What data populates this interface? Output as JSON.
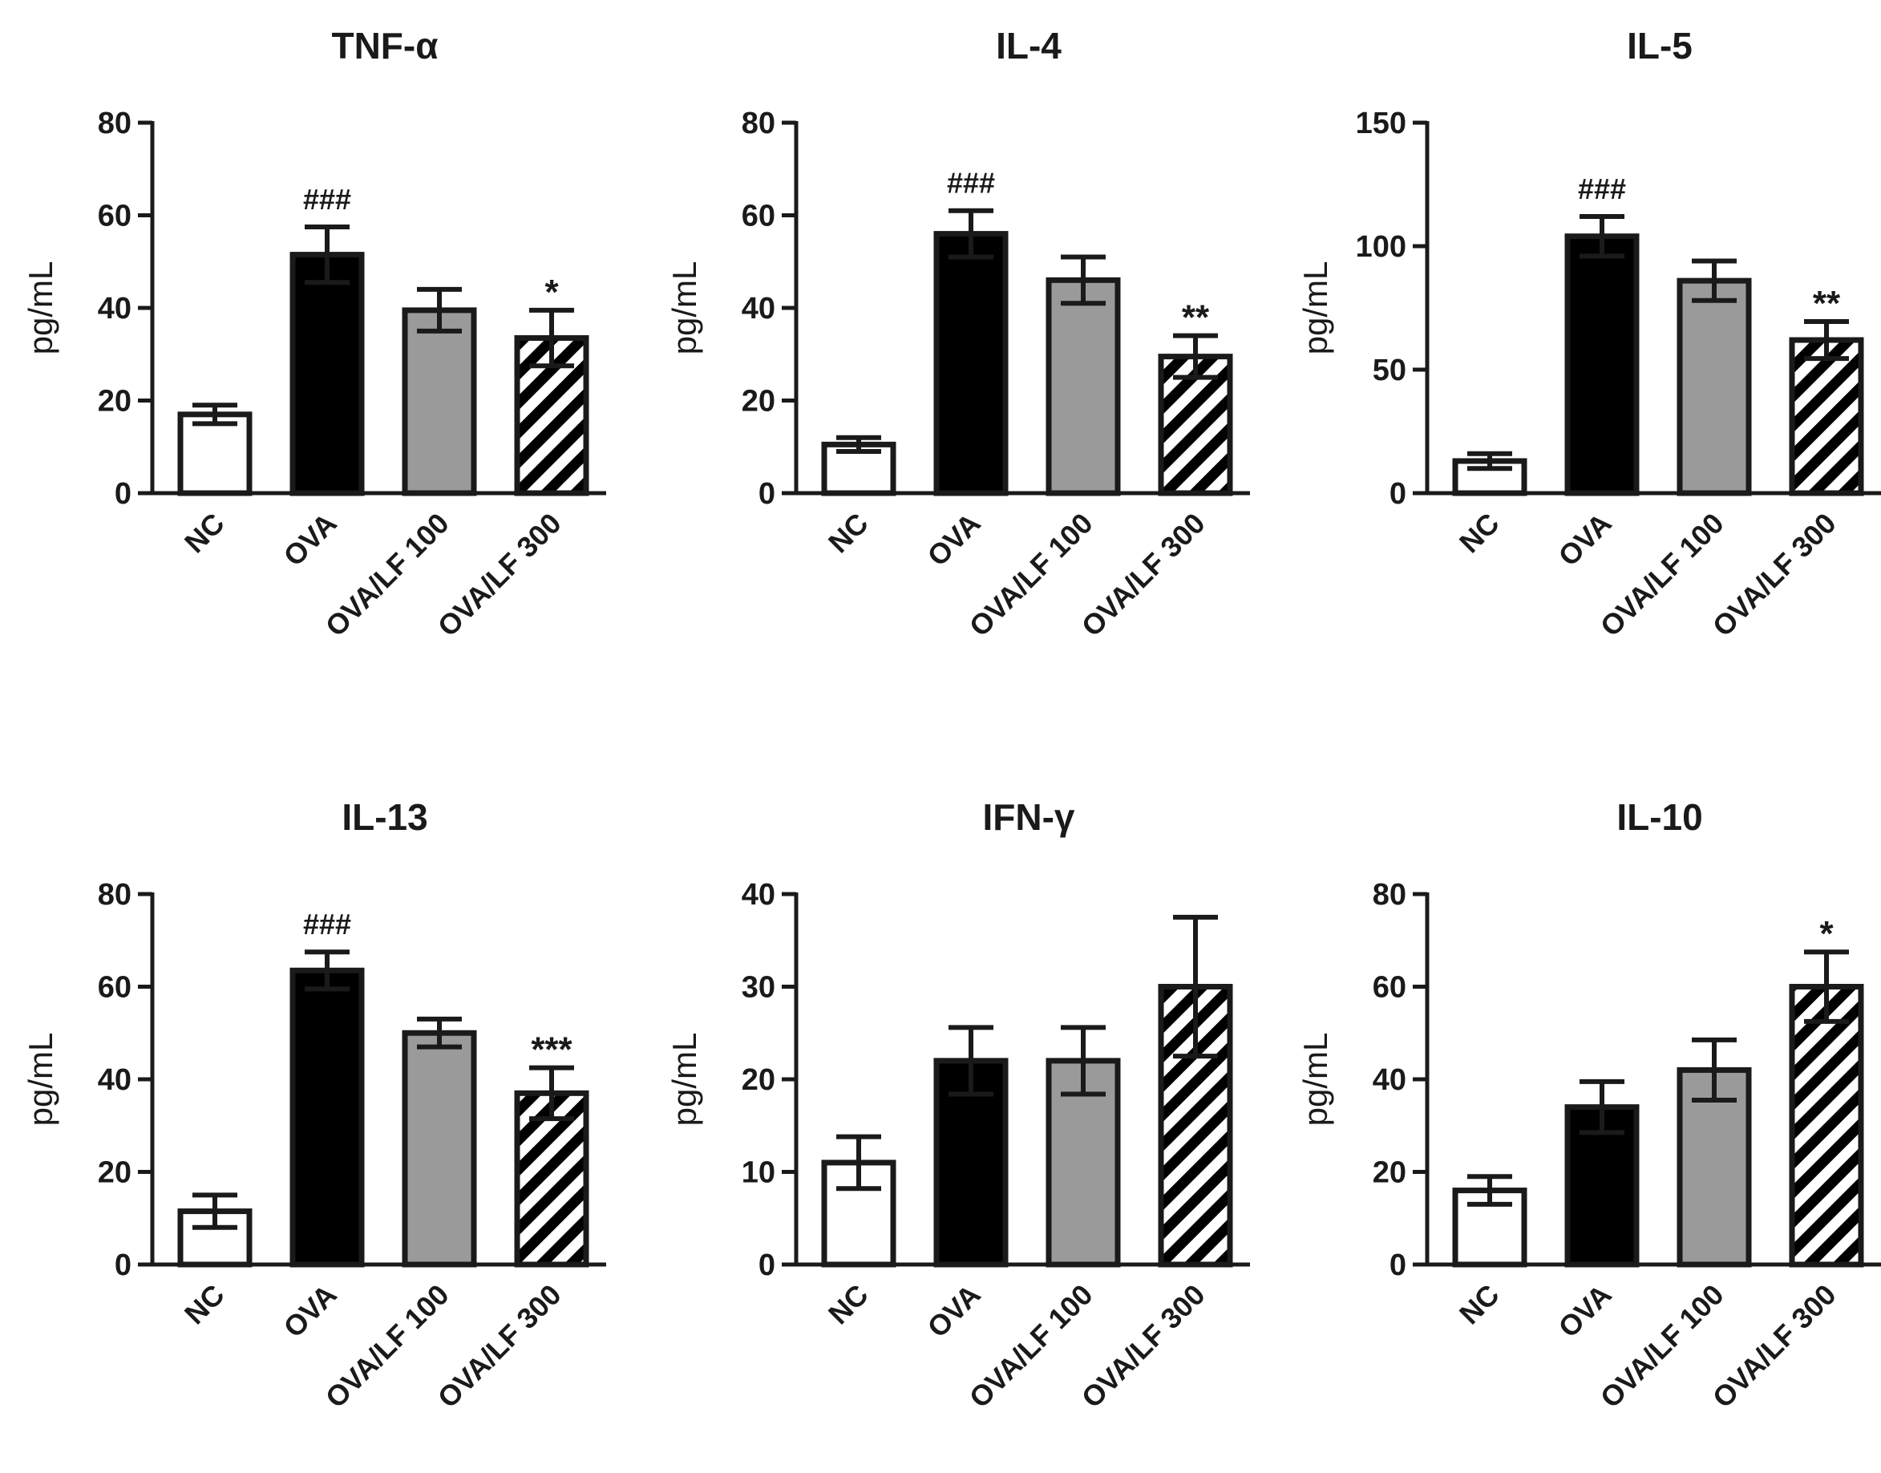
{
  "figure": {
    "panel_count": 6
  },
  "colors": {
    "NC": "#ffffff",
    "OVA": "#000000",
    "OVA/LF 100": "#9a9a9a",
    "OVA/LF 300": "hatched",
    "stroke": "#1a1a1a"
  },
  "chart_data": [
    {
      "type": "bar",
      "title": "TNF-α",
      "ylabel": "pg/mL",
      "xlabel": "",
      "categories": [
        "NC",
        "OVA",
        "OVA/LF 100",
        "OVA/LF 300"
      ],
      "values": [
        17,
        51.5,
        39.5,
        33.5
      ],
      "errors": [
        2,
        6,
        4.5,
        6
      ],
      "ylim": [
        0,
        80
      ],
      "yticks": [
        0,
        20,
        40,
        60,
        80
      ],
      "annotations": [
        "",
        "###",
        "",
        "*"
      ],
      "grid": false
    },
    {
      "type": "bar",
      "title": "IL-4",
      "ylabel": "pg/mL",
      "xlabel": "",
      "categories": [
        "NC",
        "OVA",
        "OVA/LF 100",
        "OVA/LF 300"
      ],
      "values": [
        10.5,
        56,
        46,
        29.5
      ],
      "errors": [
        1.5,
        5,
        5,
        4.5
      ],
      "ylim": [
        0,
        80
      ],
      "yticks": [
        0,
        20,
        40,
        60,
        80
      ],
      "annotations": [
        "",
        "###",
        "",
        "**"
      ],
      "grid": false
    },
    {
      "type": "bar",
      "title": "IL-5",
      "ylabel": "pg/mL",
      "xlabel": "",
      "categories": [
        "NC",
        "OVA",
        "OVA/LF 100",
        "OVA/LF 300"
      ],
      "values": [
        13,
        104,
        86,
        62
      ],
      "errors": [
        3,
        8,
        8,
        7.5
      ],
      "ylim": [
        0,
        150
      ],
      "yticks": [
        0,
        50,
        100,
        150
      ],
      "annotations": [
        "",
        "###",
        "",
        "**"
      ],
      "grid": false
    },
    {
      "type": "bar",
      "title": "IL-13",
      "ylabel": "pg/mL",
      "xlabel": "",
      "categories": [
        "NC",
        "OVA",
        "OVA/LF 100",
        "OVA/LF 300"
      ],
      "values": [
        11.5,
        63.5,
        50,
        37
      ],
      "errors": [
        3.5,
        4,
        3,
        5.5
      ],
      "ylim": [
        0,
        80
      ],
      "yticks": [
        0,
        20,
        40,
        60,
        80
      ],
      "annotations": [
        "",
        "###",
        "",
        "***"
      ],
      "grid": false
    },
    {
      "type": "bar",
      "title": "IFN-γ",
      "ylabel": "pg/mL",
      "xlabel": "",
      "categories": [
        "NC",
        "OVA",
        "OVA/LF 100",
        "OVA/LF 300"
      ],
      "values": [
        11,
        22,
        22,
        30
      ],
      "errors": [
        2.8,
        3.6,
        3.6,
        7.5
      ],
      "ylim": [
        0,
        40
      ],
      "yticks": [
        0,
        10,
        20,
        30,
        40
      ],
      "annotations": [
        "",
        "",
        "",
        ""
      ],
      "grid": false
    },
    {
      "type": "bar",
      "title": "IL-10",
      "ylabel": "pg/mL",
      "xlabel": "",
      "categories": [
        "NC",
        "OVA",
        "OVA/LF 100",
        "OVA/LF 300"
      ],
      "values": [
        16,
        34,
        42,
        60
      ],
      "errors": [
        3,
        5.5,
        6.5,
        7.5
      ],
      "ylim": [
        0,
        80
      ],
      "yticks": [
        0,
        20,
        40,
        60,
        80
      ],
      "annotations": [
        "",
        "",
        "",
        "*"
      ],
      "grid": false
    }
  ]
}
